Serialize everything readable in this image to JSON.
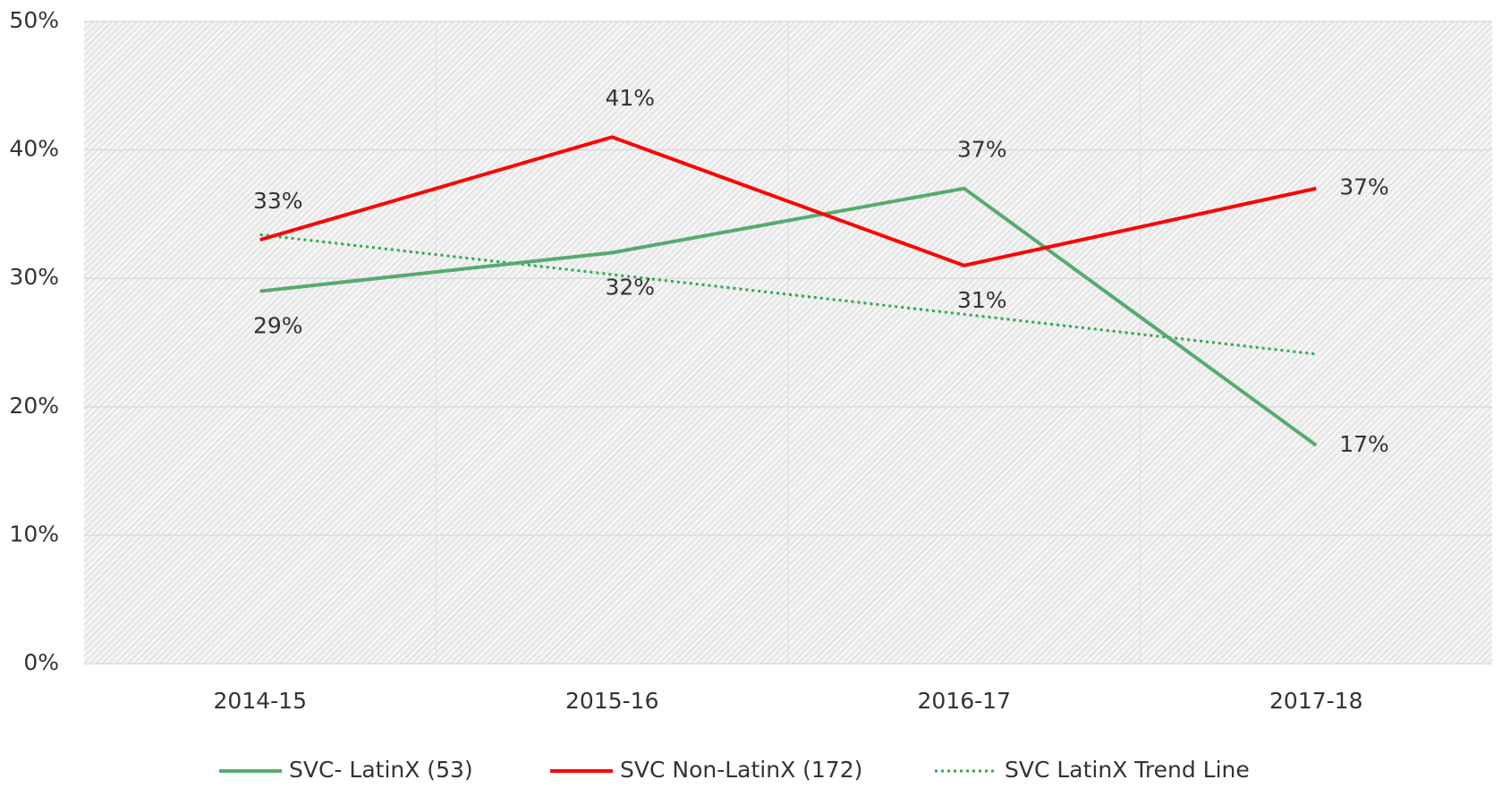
{
  "chart_data": {
    "type": "line",
    "categories": [
      "2014-15",
      "2015-16",
      "2016-17",
      "2017-18"
    ],
    "series": [
      {
        "name": "SVC- LatinX (53)",
        "color": "#55ab6e",
        "values": [
          29,
          32,
          37,
          17
        ],
        "value_labels": [
          "29%",
          "32%",
          "37%",
          "17%"
        ]
      },
      {
        "name": "SVC Non-LatinX (172)",
        "color": "#ff0000",
        "values": [
          33,
          41,
          31,
          37
        ],
        "value_labels": [
          "33%",
          "41%",
          "31%",
          "37%"
        ]
      },
      {
        "name": "SVC LatinX Trend Line",
        "color": "#2fa84f",
        "dash": "dotted",
        "values": [
          33.4,
          30.3,
          27.2,
          24.1
        ]
      }
    ],
    "ylim": [
      0,
      50
    ],
    "yticks": [
      {
        "value": 0,
        "label": "0%"
      },
      {
        "value": 10,
        "label": "10%"
      },
      {
        "value": 20,
        "label": "20%"
      },
      {
        "value": 30,
        "label": "30%"
      },
      {
        "value": 40,
        "label": "40%"
      },
      {
        "value": 50,
        "label": "50%"
      }
    ],
    "grid": true
  }
}
